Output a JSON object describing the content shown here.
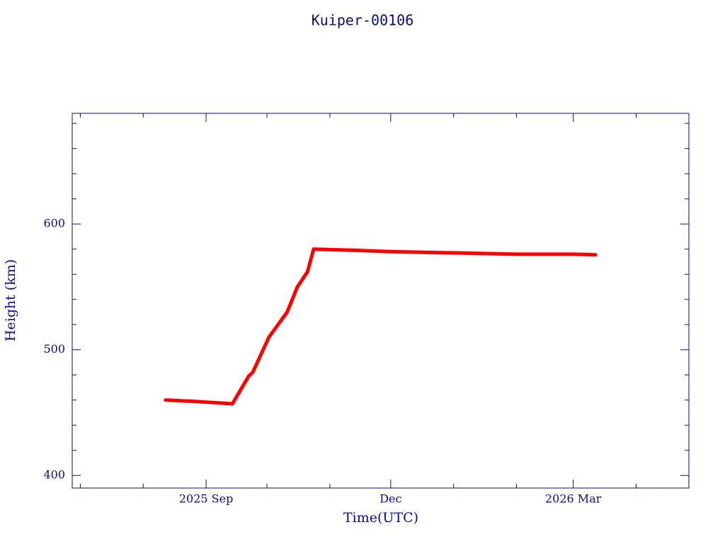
{
  "chart_data": {
    "type": "line",
    "title": "Kuiper-00106",
    "x_label": "Time(UTC)",
    "y_label": "Height (km)",
    "x": [
      "2025-08-12",
      "2025-08-25",
      "2025-09-14",
      "2025-09-22",
      "2025-09-24",
      "2025-10-02",
      "2025-10-11",
      "2025-10-16",
      "2025-10-21",
      "2025-10-24",
      "2025-11-15",
      "2025-12-01",
      "2026-01-01",
      "2026-02-01",
      "2026-03-01",
      "2026-03-12"
    ],
    "series": [
      {
        "color": "#ff0000",
        "values": [
          460,
          459,
          457,
          479,
          482,
          510,
          530,
          550,
          562,
          580,
          579,
          578,
          577,
          576,
          576,
          575.5
        ]
      }
    ],
    "xlim": [
      "2025-06-27",
      "2026-04-27"
    ],
    "xticks": [
      {
        "value": "2025-09",
        "label": "2025 Sep"
      },
      {
        "value": "2025-12",
        "label": "Dec"
      },
      {
        "value": "2026-03",
        "label": "2026 Mar"
      }
    ],
    "xminorticks": [
      "2025-07",
      "2025-08",
      "2025-10",
      "2025-11",
      "2026-01",
      "2026-02",
      "2026-04"
    ],
    "ylim": [
      390,
      688
    ],
    "yticks": [
      400,
      500,
      600
    ],
    "yminorticks": [
      420,
      440,
      460,
      480,
      520,
      540,
      560,
      580,
      620,
      640,
      660,
      680
    ]
  }
}
